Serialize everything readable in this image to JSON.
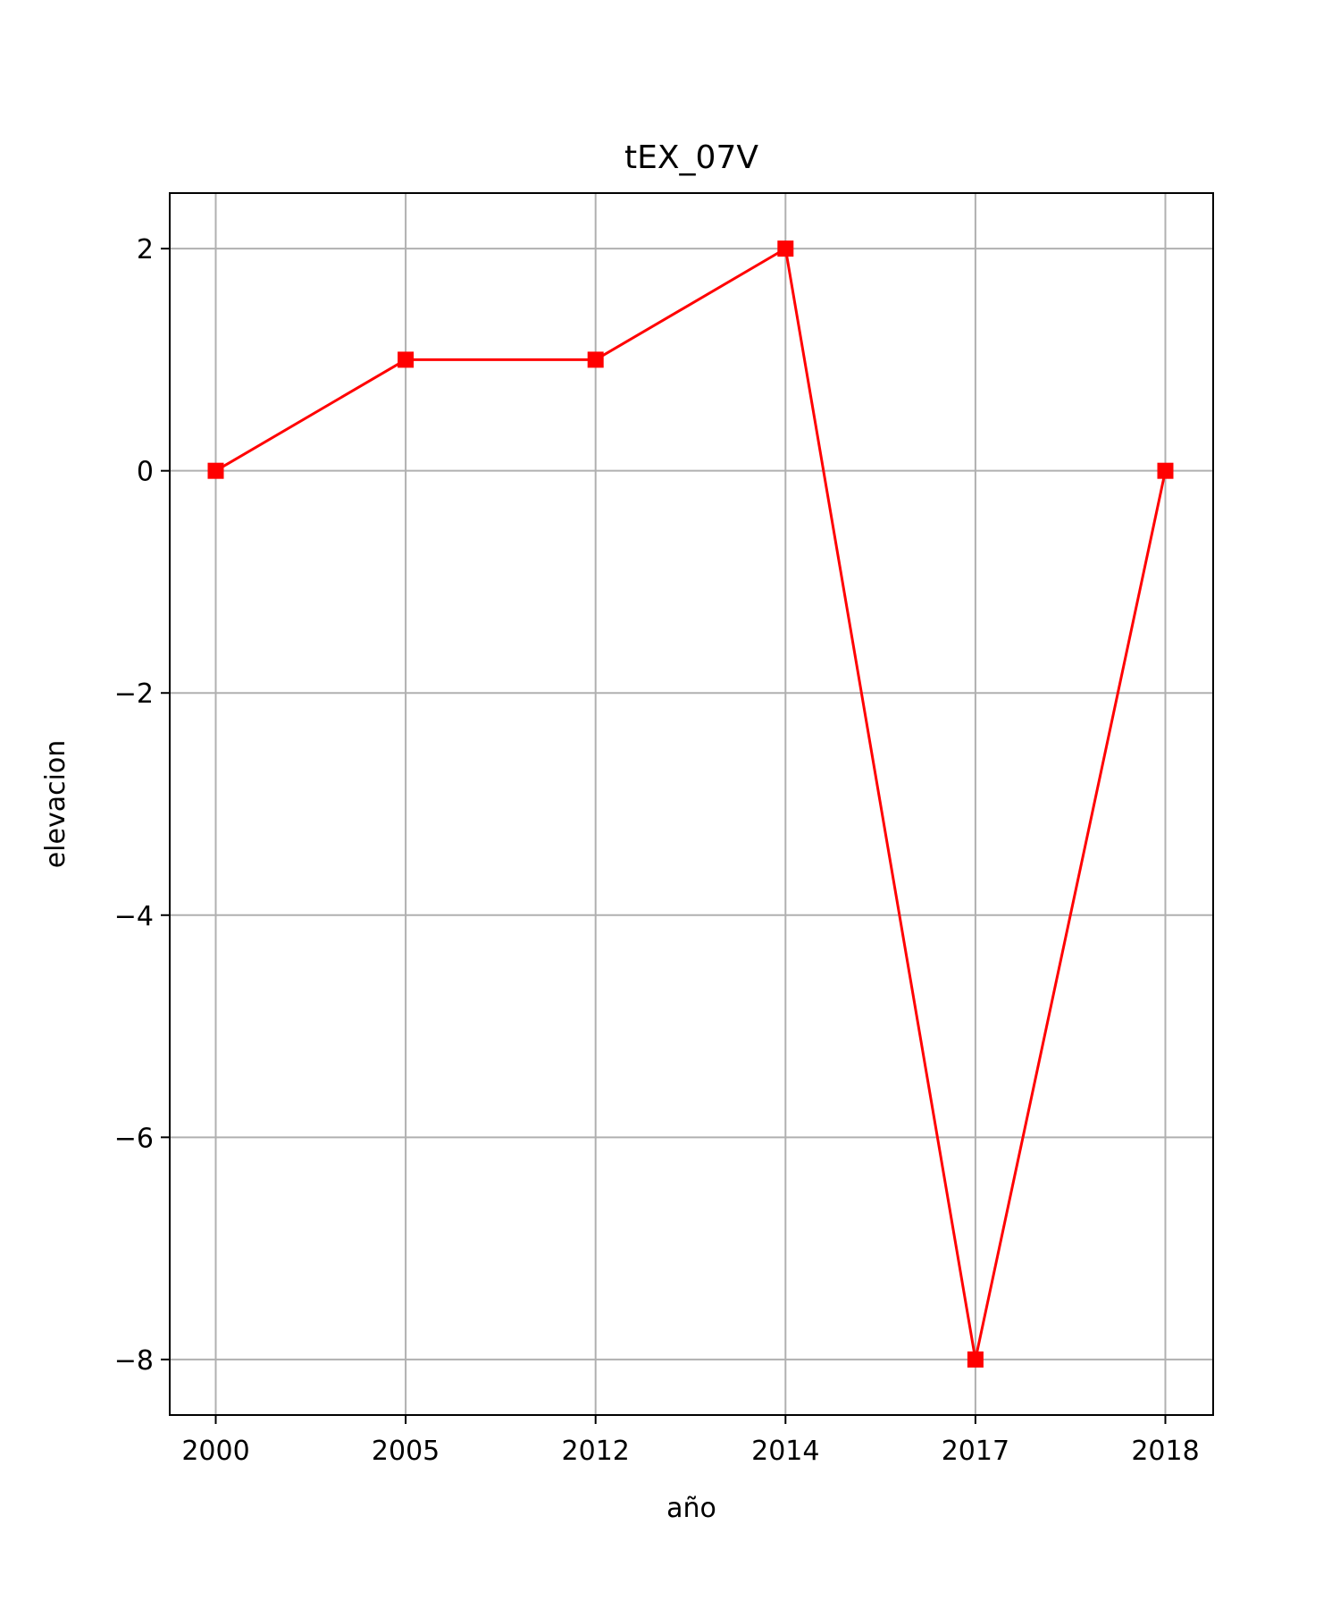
{
  "chart_data": {
    "type": "line",
    "title": "tEX_07V",
    "xlabel": "año",
    "ylabel": "elevacion",
    "categories": [
      "2000",
      "2005",
      "2012",
      "2014",
      "2017",
      "2018"
    ],
    "series": [
      {
        "values": [
          0,
          1,
          1,
          2,
          -8,
          0
        ],
        "color": "#ff0000",
        "marker": "square"
      }
    ],
    "ylim": [
      -8.5,
      2.5
    ],
    "yticks": [
      2,
      0,
      -2,
      -4,
      -6,
      -8
    ],
    "ytick_labels": [
      "2",
      "0",
      "−2",
      "−4",
      "−6",
      "−8"
    ],
    "grid": true,
    "grid_color": "#b0b0b0"
  }
}
